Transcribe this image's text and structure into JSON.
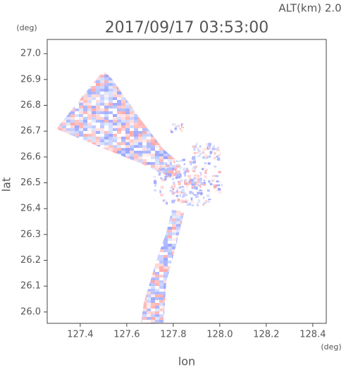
{
  "chart_data": {
    "type": "radar-map",
    "title": "2017/09/17 03:53:00",
    "subtitle": "ALT(km) 2.0",
    "x_label": "lon",
    "y_label": "lat",
    "x_unit": "(deg)",
    "y_unit": "(deg)",
    "xlim": [
      127.258,
      128.458
    ],
    "ylim": [
      25.956,
      27.055
    ],
    "xticks": [
      127.4,
      127.6,
      127.8,
      {
        "value": 128,
        "label": "128.0"
      },
      128.2,
      128.4
    ],
    "yticks": [
      {
        "value": 26,
        "label": "26.0"
      },
      26.1,
      26.2,
      26.3,
      26.4,
      26.5,
      26.6,
      26.7,
      26.8,
      26.9,
      {
        "value": 27,
        "label": "27.0"
      }
    ]
  }
}
